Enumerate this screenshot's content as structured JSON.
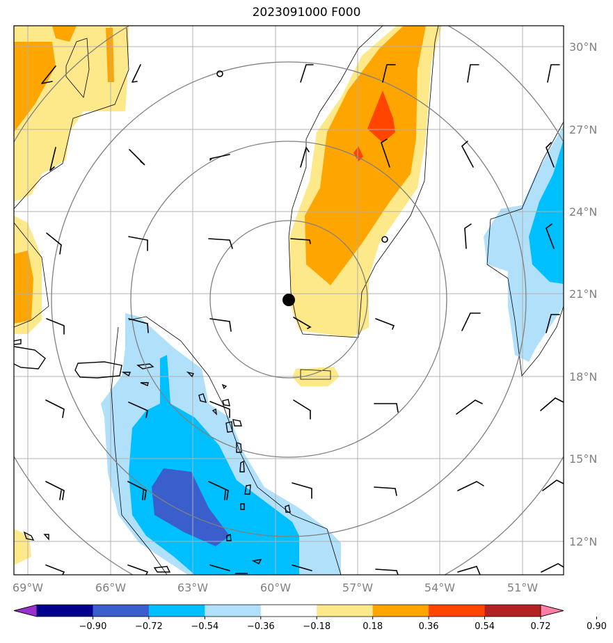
{
  "title": "2023091000 F000",
  "lat_labels": [
    "30°N",
    "27°N",
    "24°N",
    "21°N",
    "18°N",
    "15°N",
    "12°N"
  ],
  "lon_labels": [
    "69°W",
    "66°W",
    "63°W",
    "60°W",
    "57°W",
    "54°W",
    "51°W"
  ],
  "colorbar": {
    "ticks": [
      "−0.90",
      "−0.72",
      "−0.54",
      "−0.36",
      "−0.18",
      "0.18",
      "0.36",
      "0.54",
      "0.72",
      "0.90"
    ],
    "colors": [
      "#9932cc",
      "#00008b",
      "#3a5fcd",
      "#00bfff",
      "#b0e0fa",
      "#ffffff",
      "#fde88a",
      "#ffa500",
      "#ff4500",
      "#b22222",
      "#ff7fa6"
    ]
  },
  "center_marker": {
    "lat": 20.8,
    "lon": -59.8
  },
  "range_rings": {
    "count": 4,
    "color": "#808080"
  }
}
